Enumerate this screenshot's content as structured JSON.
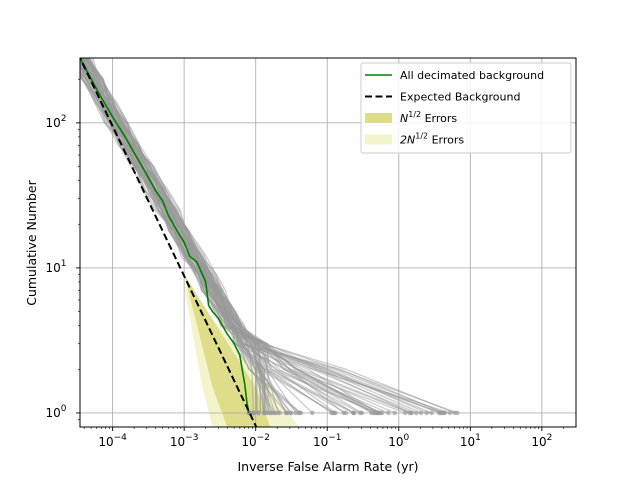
{
  "chart_data": {
    "type": "line",
    "xlabel": "Inverse False Alarm Rate (yr)",
    "ylabel": "Cumulative Number",
    "xscale": "log",
    "yscale": "log",
    "xlim": [
      3.5e-05,
      300
    ],
    "ylim": [
      0.8,
      280
    ],
    "grid": true,
    "legend_position": "top-right",
    "x_ticks": [
      {
        "value": 0.0001,
        "base": "10",
        "exp": "−4"
      },
      {
        "value": 0.001,
        "base": "10",
        "exp": "−3"
      },
      {
        "value": 0.01,
        "base": "10",
        "exp": "−2"
      },
      {
        "value": 0.1,
        "base": "10",
        "exp": "−1"
      },
      {
        "value": 1,
        "base": "10",
        "exp": "0"
      },
      {
        "value": 10,
        "base": "10",
        "exp": "1"
      },
      {
        "value": 100,
        "base": "10",
        "exp": "2"
      }
    ],
    "y_ticks": [
      {
        "value": 1,
        "base": "10",
        "exp": "0"
      },
      {
        "value": 10,
        "base": "10",
        "exp": "1"
      },
      {
        "value": 100,
        "base": "10",
        "exp": "2"
      }
    ],
    "legend": [
      {
        "kind": "line",
        "color": "#008000",
        "dash": false,
        "label": "All decimated background"
      },
      {
        "kind": "line",
        "color": "#000000",
        "dash": true,
        "label": "Expected Background"
      },
      {
        "kind": "patch",
        "color": "#dede8a",
        "label_base": "N",
        "label_sup": "1/2",
        "label_tail": " Errors"
      },
      {
        "kind": "patch",
        "color": "#f3f3cc",
        "label_base": "2N",
        "label_sup": "1/2",
        "label_tail": " Errors"
      }
    ],
    "series": [
      {
        "role": "all-decimated-background",
        "color": "#008000",
        "points": [
          [
            3.5e-05,
            280
          ],
          [
            6e-05,
            170
          ],
          [
            0.0001,
            110
          ],
          [
            0.00015,
            80
          ],
          [
            0.0002,
            62
          ],
          [
            0.0003,
            44
          ],
          [
            0.0004,
            34
          ],
          [
            0.0005,
            29
          ],
          [
            0.0006,
            23
          ],
          [
            0.0008,
            18
          ],
          [
            0.001,
            15
          ],
          [
            0.0012,
            12
          ],
          [
            0.0015,
            11
          ],
          [
            0.0018,
            9
          ],
          [
            0.002,
            8
          ],
          [
            0.0022,
            5.5
          ],
          [
            0.0025,
            5
          ],
          [
            0.003,
            4.5
          ],
          [
            0.004,
            3.5
          ],
          [
            0.005,
            3
          ],
          [
            0.006,
            2.5
          ],
          [
            0.007,
            1.6
          ],
          [
            0.0075,
            1.2
          ],
          [
            0.008,
            1
          ]
        ]
      },
      {
        "role": "expected-background",
        "color": "#000000",
        "points": [
          [
            3.28e-05,
            300
          ],
          [
            0.0102,
            0.8
          ]
        ]
      }
    ],
    "error_bands": {
      "n_sqrt": {
        "color": "#dede8a",
        "x_lower": [
          3.5e-05,
          0.0001,
          0.001,
          0.0025,
          0.004
        ],
        "x_upper": [
          3.5e-05,
          0.0001,
          0.001,
          0.01,
          0.016
        ],
        "y": [
          280,
          95,
          9,
          1.5,
          0.8
        ]
      },
      "two_n_sqrt": {
        "color": "#f3f3cc",
        "x_lower": [
          3.5e-05,
          0.0001,
          0.001,
          0.0018,
          0.0025
        ],
        "x_upper": [
          3.5e-05,
          0.0001,
          0.001,
          0.016,
          0.04
        ],
        "y": [
          280,
          90,
          7.5,
          1.5,
          0.8
        ]
      }
    },
    "background_trials": {
      "count": 70,
      "color": "#999999",
      "description": "grey decimated background realizations",
      "endpoint_x_range": [
        0.008,
        7
      ]
    }
  }
}
